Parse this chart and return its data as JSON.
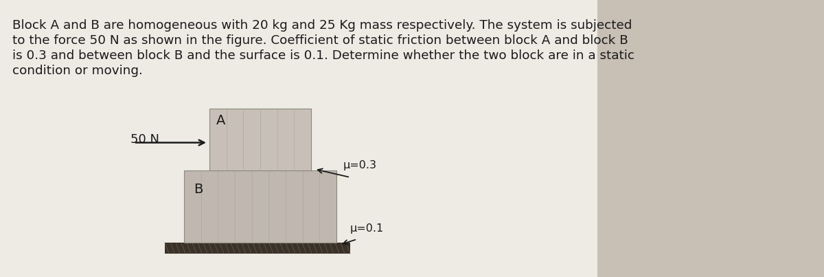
{
  "bg_color": "#e8e4de",
  "paper_color": "#f0ede8",
  "text_color": "#1a1a1a",
  "problem_text_lines": [
    "Block A and B are homogeneous with 20 kg and 25 Kg mass respectively. The system is subjected",
    "to the force 50 N as shown in the figure. Coefficient of static friction between block A and block B",
    "is 0.3 and between block B and the surface is 0.1. Determine whether the two block are in a static",
    "condition or moving."
  ],
  "block_A_color": "#c8c0b8",
  "block_B_color": "#c0b8b0",
  "ground_color": "#3a3228",
  "stripe_color": "#aaa89a",
  "fig_width": 12.0,
  "fig_height": 4.03,
  "font_size_problem": 13.2,
  "font_size_labels": 13,
  "font_size_mu": 11.5
}
